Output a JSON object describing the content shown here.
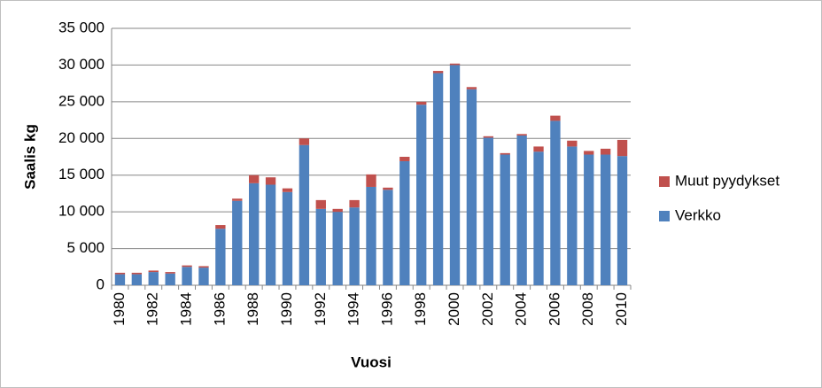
{
  "chart_data": {
    "type": "bar",
    "stacked": true,
    "x_label": "Vuosi",
    "y_label": "Saalis kg",
    "categories": [
      "1980",
      null,
      "1982",
      null,
      "1984",
      null,
      "1986",
      null,
      "1988",
      null,
      "1990",
      null,
      "1992",
      null,
      "1994",
      null,
      "1996",
      null,
      "1998",
      null,
      "2000",
      null,
      "2002",
      null,
      "2004",
      null,
      "2006",
      null,
      "2008",
      null,
      "2010"
    ],
    "series": [
      {
        "name": "Verkko",
        "color": "#4f81bd",
        "values": [
          1500,
          1500,
          1800,
          1600,
          2500,
          2400,
          7700,
          11500,
          13900,
          13700,
          12700,
          19100,
          10400,
          10000,
          10600,
          13400,
          13000,
          16900,
          24600,
          28900,
          30000,
          26700,
          20100,
          17800,
          20400,
          18200,
          22400,
          18900,
          17800,
          17800,
          17600
        ]
      },
      {
        "name": "Muut pyydykset",
        "color": "#c0504d",
        "values": [
          200,
          200,
          200,
          200,
          200,
          200,
          500,
          300,
          1100,
          1000,
          500,
          900,
          1200,
          400,
          1000,
          1700,
          300,
          600,
          400,
          300,
          200,
          300,
          200,
          200,
          200,
          700,
          700,
          800,
          500,
          800,
          2200
        ]
      }
    ],
    "ylim": [
      0,
      35000
    ],
    "yticks": [
      0,
      {
        "value": 5000,
        "label": "5 000"
      },
      {
        "value": 10000,
        "label": "10 000"
      },
      {
        "value": 15000,
        "label": "15 000"
      },
      {
        "value": 20000,
        "label": "20 000"
      },
      {
        "value": 25000,
        "label": "25 000"
      },
      {
        "value": 30000,
        "label": "30 000"
      },
      {
        "value": 35000,
        "label": "35 000"
      }
    ],
    "grid": true,
    "legend": "right"
  }
}
